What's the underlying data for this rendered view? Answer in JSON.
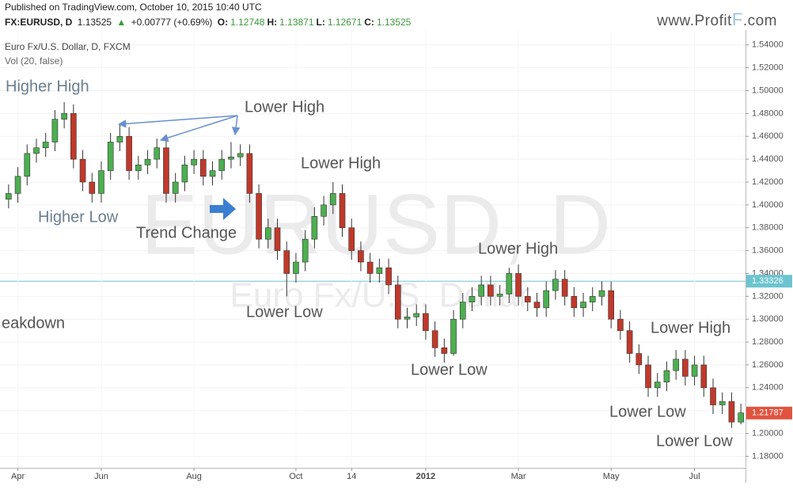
{
  "header": {
    "published": "Published on TradingView.com, October 10, 2015 10:40 UTC",
    "symbol": "FX:EURUSD, D",
    "last": "1.13525",
    "change": "+0.00777 (+0.69%)",
    "ohlc": [
      {
        "label": "O:",
        "value": "1.12748"
      },
      {
        "label": "H:",
        "value": "1.13871"
      },
      {
        "label": "L:",
        "value": "1.12671"
      },
      {
        "label": "C:",
        "value": "1.13525"
      }
    ],
    "logo": [
      "www.Profit",
      "F",
      ".com"
    ]
  },
  "chart_data": {
    "type": "candlestick",
    "title": "Euro Fx/U.S. Dollar, D, FXCM",
    "subtitle": "Vol (20, false)",
    "watermark": [
      "EURUSD, D",
      "Euro Fx/U.S. Dollar"
    ],
    "categories": [
      null,
      "Apr",
      null,
      null,
      null,
      null,
      null,
      null,
      null,
      null,
      "Jun",
      null,
      null,
      null,
      null,
      null,
      null,
      null,
      null,
      null,
      "Aug",
      null,
      null,
      null,
      null,
      null,
      null,
      null,
      null,
      null,
      null,
      "Oct",
      null,
      null,
      null,
      null,
      null,
      "14",
      null,
      null,
      null,
      null,
      null,
      null,
      null,
      "2012",
      null,
      null,
      null,
      null,
      null,
      null,
      null,
      null,
      null,
      "Mar",
      null,
      null,
      null,
      null,
      null,
      null,
      null,
      null,
      null,
      "May",
      null,
      null,
      null,
      null,
      null,
      null,
      null,
      null,
      "Jul",
      null,
      null,
      null,
      null,
      null
    ],
    "open": [
      1.405,
      1.41,
      1.425,
      1.445,
      1.45,
      1.455,
      1.475,
      1.48,
      1.44,
      1.42,
      1.41,
      1.43,
      1.455,
      1.46,
      1.43,
      1.435,
      1.44,
      1.45,
      1.41,
      1.42,
      1.435,
      1.44,
      1.425,
      1.43,
      1.44,
      1.442,
      1.445,
      1.41,
      1.37,
      1.38,
      1.36,
      1.34,
      1.35,
      1.37,
      1.39,
      1.4,
      1.41,
      1.38,
      1.36,
      1.35,
      1.34,
      1.345,
      1.33,
      1.3,
      1.302,
      1.305,
      1.29,
      1.275,
      1.27,
      1.3,
      1.315,
      1.32,
      1.33,
      1.32,
      1.322,
      1.34,
      1.32,
      1.315,
      1.31,
      1.325,
      1.335,
      1.32,
      1.31,
      1.315,
      1.32,
      1.325,
      1.3,
      1.29,
      1.27,
      1.26,
      1.24,
      1.245,
      1.255,
      1.265,
      1.25,
      1.26,
      1.24,
      1.225,
      1.228,
      1.21
    ],
    "high": [
      1.418,
      1.433,
      1.453,
      1.458,
      1.463,
      1.483,
      1.49,
      1.488,
      1.448,
      1.428,
      1.438,
      1.463,
      1.47,
      1.468,
      1.443,
      1.448,
      1.458,
      1.458,
      1.428,
      1.443,
      1.448,
      1.448,
      1.438,
      1.448,
      1.455,
      1.453,
      1.453,
      1.418,
      1.388,
      1.388,
      1.368,
      1.358,
      1.378,
      1.398,
      1.408,
      1.42,
      1.418,
      1.388,
      1.368,
      1.358,
      1.353,
      1.353,
      1.338,
      1.31,
      1.313,
      1.313,
      1.298,
      1.283,
      1.308,
      1.323,
      1.328,
      1.338,
      1.338,
      1.33,
      1.345,
      1.348,
      1.328,
      1.323,
      1.333,
      1.343,
      1.343,
      1.328,
      1.323,
      1.328,
      1.333,
      1.333,
      1.308,
      1.298,
      1.278,
      1.268,
      1.253,
      1.263,
      1.273,
      1.273,
      1.268,
      1.268,
      1.248,
      1.236,
      1.236,
      1.226
    ],
    "low": [
      1.397,
      1.402,
      1.417,
      1.437,
      1.442,
      1.447,
      1.467,
      1.432,
      1.412,
      1.402,
      1.402,
      1.422,
      1.447,
      1.422,
      1.422,
      1.427,
      1.432,
      1.402,
      1.402,
      1.412,
      1.427,
      1.417,
      1.417,
      1.422,
      1.432,
      1.434,
      1.402,
      1.362,
      1.362,
      1.352,
      1.32,
      1.332,
      1.342,
      1.362,
      1.382,
      1.392,
      1.372,
      1.352,
      1.342,
      1.332,
      1.332,
      1.322,
      1.292,
      1.292,
      1.294,
      1.282,
      1.267,
      1.262,
      1.268,
      1.292,
      1.307,
      1.312,
      1.312,
      1.312,
      1.314,
      1.312,
      1.307,
      1.302,
      1.302,
      1.317,
      1.312,
      1.302,
      1.302,
      1.307,
      1.312,
      1.292,
      1.282,
      1.262,
      1.252,
      1.232,
      1.232,
      1.237,
      1.247,
      1.242,
      1.242,
      1.232,
      1.217,
      1.217,
      1.205,
      1.208
    ],
    "close": [
      1.41,
      1.425,
      1.445,
      1.45,
      1.455,
      1.475,
      1.48,
      1.44,
      1.42,
      1.41,
      1.43,
      1.455,
      1.46,
      1.43,
      1.435,
      1.44,
      1.45,
      1.41,
      1.42,
      1.435,
      1.44,
      1.425,
      1.43,
      1.44,
      1.442,
      1.445,
      1.41,
      1.37,
      1.38,
      1.36,
      1.34,
      1.35,
      1.37,
      1.39,
      1.4,
      1.41,
      1.38,
      1.36,
      1.35,
      1.34,
      1.345,
      1.33,
      1.3,
      1.302,
      1.305,
      1.29,
      1.275,
      1.27,
      1.3,
      1.315,
      1.32,
      1.33,
      1.32,
      1.322,
      1.34,
      1.32,
      1.315,
      1.31,
      1.325,
      1.335,
      1.32,
      1.31,
      1.315,
      1.32,
      1.325,
      1.3,
      1.29,
      1.27,
      1.26,
      1.24,
      1.245,
      1.255,
      1.265,
      1.25,
      1.26,
      1.24,
      1.225,
      1.228,
      1.21,
      1.218
    ],
    "up_color": "#4caf50",
    "down_color": "#c0392b",
    "wick_color": "#333333",
    "ylim": [
      1.172,
      1.553
    ],
    "yticks": [
      {
        "value": 1.18,
        "label": "1.18000"
      },
      {
        "value": 1.2,
        "label": "1.20000"
      },
      {
        "value": 1.22,
        "label": "1.22000"
      },
      {
        "value": 1.24,
        "label": "1.24000"
      },
      {
        "value": 1.26,
        "label": "1.26000"
      },
      {
        "value": 1.28,
        "label": "1.28000"
      },
      {
        "value": 1.3,
        "label": "1.30000"
      },
      {
        "value": 1.32,
        "label": "1.32000"
      },
      {
        "value": 1.34,
        "label": "1.34000"
      },
      {
        "value": 1.36,
        "label": "1.36000"
      },
      {
        "value": 1.38,
        "label": "1.38000"
      },
      {
        "value": 1.4,
        "label": "1.40000"
      },
      {
        "value": 1.42,
        "label": "1.42000"
      },
      {
        "value": 1.44,
        "label": "1.44000"
      },
      {
        "value": 1.46,
        "label": "1.46000"
      },
      {
        "value": 1.48,
        "label": "1.48000"
      },
      {
        "value": 1.5,
        "label": "1.50000"
      },
      {
        "value": 1.52,
        "label": "1.52000"
      },
      {
        "value": 1.54,
        "label": "1.54000"
      }
    ],
    "grid": true,
    "price_lines": [
      {
        "value": 1.33326,
        "label": "1.33326",
        "color": "#6cc4d0",
        "line": true
      },
      {
        "value": 1.21787,
        "label": "1.21787",
        "color": "#e0533f",
        "line": false
      }
    ],
    "annotations": [
      {
        "text": "Higher High",
        "color": "#6b7f91"
      },
      {
        "text": "Lower High",
        "color": "#555555"
      },
      {
        "text": "Lower High",
        "color": "#555555"
      },
      {
        "text": "Higher Low",
        "color": "#6b7f91"
      },
      {
        "text": "Trend Change",
        "color": "#555555"
      },
      {
        "text": "Lower High",
        "color": "#555555"
      },
      {
        "text": "Lower Low",
        "color": "#555555"
      },
      {
        "text": "eakdown",
        "color": "#555555"
      },
      {
        "text": "Lower Low",
        "color": "#555555"
      },
      {
        "text": "Lower High",
        "color": "#555555"
      },
      {
        "text": "Lower Low",
        "color": "#555555"
      },
      {
        "text": "Lower Low",
        "color": "#555555"
      }
    ]
  }
}
